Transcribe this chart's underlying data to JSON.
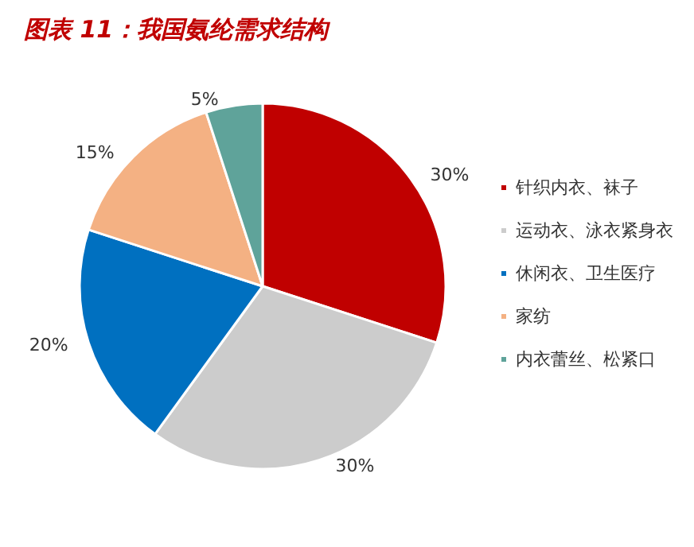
{
  "chart_data": {
    "type": "pie",
    "title": "图表 11：我国氨纶需求结构",
    "categories": [
      "针织内衣、袜子",
      "运动衣、泳衣紧身衣",
      "休闲衣、卫生医疗",
      "家纺",
      "内衣蕾丝、松紧口"
    ],
    "values": [
      30,
      30,
      20,
      15,
      5
    ],
    "value_labels": [
      "30%",
      "30%",
      "20%",
      "15%",
      "5%"
    ],
    "colors": [
      "#c00000",
      "#cccccc",
      "#0070c0",
      "#f4b183",
      "#5fa39a"
    ],
    "legend": "right"
  }
}
